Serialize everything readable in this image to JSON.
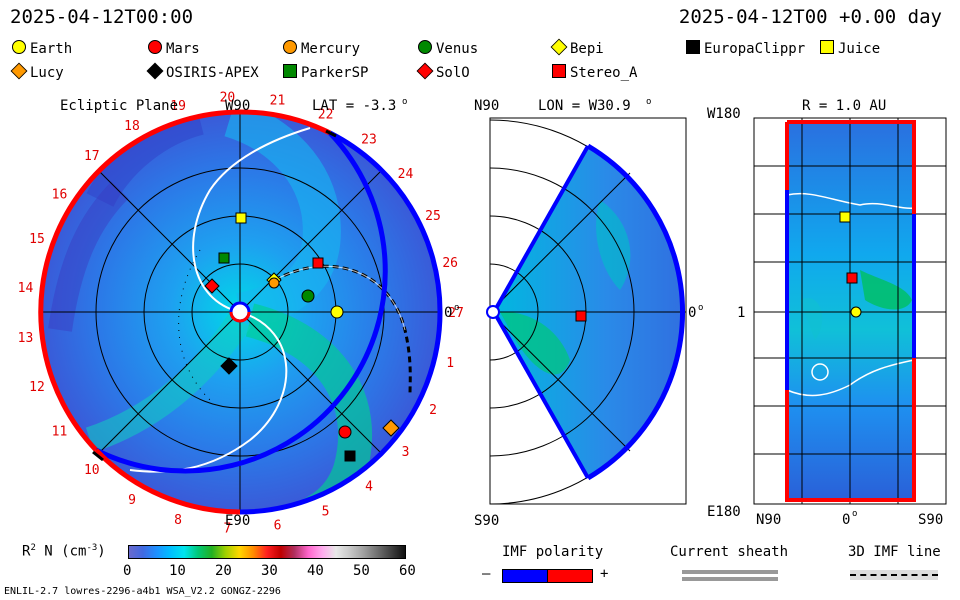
{
  "header": {
    "timestamp_left": "2025-04-12T00:00",
    "timestamp_right": "2025-04-12T00 +0.00 day"
  },
  "legend": [
    {
      "name": "Earth",
      "shape": "circle",
      "color": "#ffff00"
    },
    {
      "name": "Mars",
      "shape": "circle",
      "color": "#ff0000"
    },
    {
      "name": "Mercury",
      "shape": "circle",
      "color": "#ff9900"
    },
    {
      "name": "Venus",
      "shape": "circle",
      "color": "#008800"
    },
    {
      "name": "Bepi",
      "shape": "diamond",
      "color": "#ffff00"
    },
    {
      "name": "EuropaClippr",
      "shape": "square",
      "color": "#000000"
    },
    {
      "name": "Juice",
      "shape": "square",
      "color": "#ffff00"
    },
    {
      "name": "Lucy",
      "shape": "diamond",
      "color": "#ff9900"
    },
    {
      "name": "OSIRIS-APEX",
      "shape": "diamond",
      "color": "#000000"
    },
    {
      "name": "ParkerSP",
      "shape": "square",
      "color": "#008800"
    },
    {
      "name": "SolO",
      "shape": "diamond",
      "color": "#ff0000"
    },
    {
      "name": "Stereo_A",
      "shape": "square",
      "color": "#ff0000"
    }
  ],
  "ecliptic_panel": {
    "title": "Ecliptic Plane",
    "lat_label": "LAT = -3.3",
    "top_label": "W90",
    "bottom_label": "E90",
    "right_label": "0",
    "degree_mark": "o",
    "carrington_ticks": [
      "27",
      "1",
      "2",
      "3",
      "4",
      "5",
      "6",
      "7",
      "8",
      "9",
      "10",
      "11",
      "12",
      "13",
      "14",
      "15",
      "16",
      "17",
      "18",
      "19",
      "20",
      "21",
      "22",
      "23",
      "24",
      "25",
      "26"
    ]
  },
  "meridional_panel": {
    "lon_label": "LON = W30.9",
    "top_label": "N90",
    "bottom_label": "S90",
    "right_label": "0",
    "degree_mark": "o"
  },
  "radial_panel": {
    "r_label": "R = 1.0 AU",
    "top_left_label": "W180",
    "mid_left_label": "1",
    "bottom_left_label": "E180",
    "x_left_label": "N90",
    "x_mid_label": "0",
    "x_right_label": "S90",
    "degree_mark": "o"
  },
  "colorbar": {
    "label_prefix": "R",
    "label_sup": "2",
    "label_rest": " N (cm",
    "label_exp": "-3",
    "label_close": ")",
    "ticks": [
      "0",
      "10",
      "20",
      "30",
      "40",
      "50",
      "60"
    ]
  },
  "imf_polarity": {
    "title": "IMF polarity",
    "minus": "–",
    "plus": "+",
    "neg_color": "#0000ff",
    "pos_color": "#ff0000"
  },
  "current_sheath": {
    "title": "Current sheath"
  },
  "imf_3d": {
    "title": "3D IMF line"
  },
  "footer": {
    "model_info": "ENLIL-2.7 lowres-2296-a4b1 WSA_V2.2 GONGZ-2296"
  }
}
